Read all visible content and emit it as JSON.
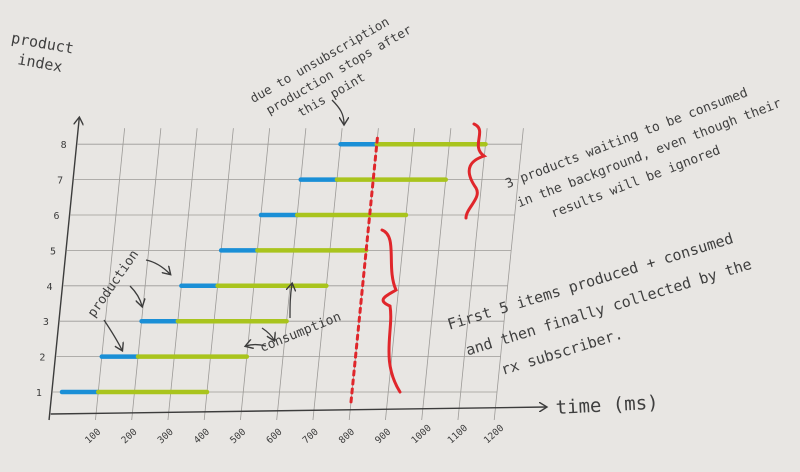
{
  "labels": {
    "y_axis": [
      "product",
      "index"
    ],
    "x_axis": "time (ms)",
    "unsubscribe_note": [
      "due to unsubscription",
      "production stops after",
      "this point"
    ],
    "waiting_note": [
      "3 products waiting to be consumed",
      "in the background, even though their",
      "results will be ignored"
    ],
    "first5_note": [
      "First 5 items produced + consumed",
      "and then finally collected by the",
      "rx subscriber."
    ],
    "production": "production",
    "consumption": "consumption"
  },
  "colors": {
    "production": "#1a8fd6",
    "consumption": "#a9c41d",
    "annotation": "#e0262b",
    "ink": "#3c3c3c",
    "grid": "#9c9a97"
  },
  "chart_data": {
    "type": "timeline",
    "x_ticks": [
      100,
      200,
      300,
      400,
      500,
      600,
      700,
      800,
      900,
      1000,
      1100,
      1200
    ],
    "y_ticks": [
      1,
      2,
      3,
      4,
      5,
      6,
      7,
      8
    ],
    "xlabel": "time (ms)",
    "ylabel": "product index",
    "cutoff_ms": 800,
    "series": [
      {
        "name": "production",
        "color": "#1a8fd6"
      },
      {
        "name": "consumption",
        "color": "#a9c41d"
      }
    ],
    "items": [
      {
        "index": 1,
        "produce_start": 0,
        "produce_end": 100,
        "consume_end": 400
      },
      {
        "index": 2,
        "produce_start": 100,
        "produce_end": 200,
        "consume_end": 500
      },
      {
        "index": 3,
        "produce_start": 200,
        "produce_end": 300,
        "consume_end": 600
      },
      {
        "index": 4,
        "produce_start": 300,
        "produce_end": 400,
        "consume_end": 700
      },
      {
        "index": 5,
        "produce_start": 400,
        "produce_end": 500,
        "consume_end": 800
      },
      {
        "index": 6,
        "produce_start": 500,
        "produce_end": 600,
        "consume_end": 900
      },
      {
        "index": 7,
        "produce_start": 600,
        "produce_end": 700,
        "consume_end": 1000
      },
      {
        "index": 8,
        "produce_start": 700,
        "produce_end": 800,
        "consume_end": 1100
      }
    ]
  }
}
